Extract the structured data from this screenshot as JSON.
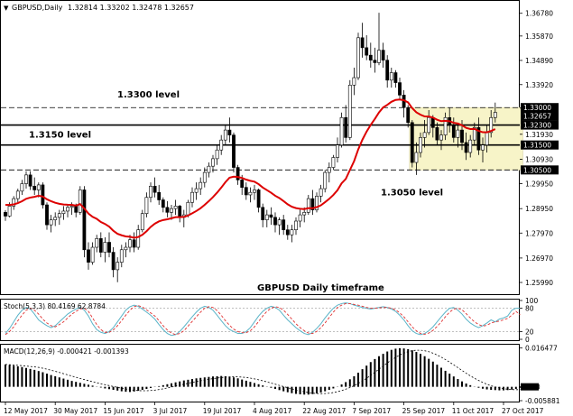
{
  "header": {
    "symbol_label": "GBPUSD,Daily",
    "ohlc_label": "1.32814 1.33202 1.32478 1.32657"
  },
  "chart_data": [
    {
      "type": "candlestick",
      "title": "GBPUSD Daily timeframe",
      "ylim": [
        1.2552,
        1.3724
      ],
      "price_ticks": [
        "1.36780",
        "1.35870",
        "1.34890",
        "1.33920",
        "1.32980",
        "1.31930",
        "1.30930",
        "1.29950",
        "1.28950",
        "1.27970",
        "1.26970",
        "1.25990"
      ],
      "date_ticks": [
        "12 May 2017",
        "30 May 2017",
        "15 Jun 2017",
        "3 Jul 2017",
        "19 Jul 2017",
        "4 Aug 2017",
        "22 Aug 2017",
        "7 Sep 2017",
        "25 Sep 2017",
        "11 Oct 2017",
        "27 Oct 2017"
      ],
      "levels": [
        {
          "id": "lvl-13300",
          "value": 1.33,
          "style": "dashed",
          "label": "1.3300 level",
          "price_label": "1.33000"
        },
        {
          "id": "lvl-13230",
          "value": 1.323,
          "style": "solid",
          "label": "",
          "price_label": "1.32300"
        },
        {
          "id": "lvl-13150",
          "value": 1.315,
          "style": "solid",
          "label": "1.3150 level",
          "price_label": "1.31500"
        },
        {
          "id": "lvl-13050",
          "value": 1.305,
          "style": "dashed",
          "label": "1.3050 level",
          "price_label": "1.30500"
        }
      ],
      "current_price": {
        "value": 1.32657,
        "label": "1.32657"
      },
      "range_box": {
        "start_index": 98,
        "end_index": 124,
        "low": 1.305,
        "high": 1.33
      },
      "moving_average": {
        "color": "#dd0000"
      },
      "candles": [
        [
          1.288,
          1.2889,
          1.2846,
          1.2865
        ],
        [
          1.2865,
          1.292,
          1.286,
          1.2905
        ],
        [
          1.2905,
          1.2945,
          1.289,
          1.2935
        ],
        [
          1.2935,
          1.2975,
          1.292,
          1.2965
        ],
        [
          1.2965,
          1.301,
          1.295,
          1.2995
        ],
        [
          1.2995,
          1.3045,
          1.2975,
          1.303
        ],
        [
          1.303,
          1.3045,
          1.297,
          1.2985
        ],
        [
          1.2985,
          1.302,
          1.295,
          1.297
        ],
        [
          1.297,
          1.3,
          1.294,
          1.299
        ],
        [
          1.299,
          1.3,
          1.2895,
          1.291
        ],
        [
          1.291,
          1.292,
          1.281,
          1.283
        ],
        [
          1.283,
          1.287,
          1.28,
          1.285
        ],
        [
          1.285,
          1.288,
          1.2825,
          1.286
        ],
        [
          1.286,
          1.289,
          1.283,
          1.2875
        ],
        [
          1.2875,
          1.2905,
          1.285,
          1.2885
        ],
        [
          1.2885,
          1.291,
          1.286,
          1.29
        ],
        [
          1.29,
          1.292,
          1.287,
          1.2905
        ],
        [
          1.2905,
          1.2915,
          1.286,
          1.288
        ],
        [
          1.288,
          1.2985,
          1.287,
          1.297
        ],
        [
          1.297,
          1.2985,
          1.27,
          1.273
        ],
        [
          1.273,
          1.276,
          1.265,
          1.268
        ],
        [
          1.268,
          1.276,
          1.267,
          1.274
        ],
        [
          1.274,
          1.279,
          1.272,
          1.2775
        ],
        [
          1.2775,
          1.28,
          1.27,
          1.272
        ],
        [
          1.272,
          1.278,
          1.268,
          1.276
        ],
        [
          1.276,
          1.28,
          1.27,
          1.272
        ],
        [
          1.272,
          1.274,
          1.262,
          1.265
        ],
        [
          1.265,
          1.27,
          1.26,
          1.268
        ],
        [
          1.268,
          1.275,
          1.266,
          1.273
        ],
        [
          1.273,
          1.276,
          1.27,
          1.274
        ],
        [
          1.274,
          1.279,
          1.272,
          1.277
        ],
        [
          1.277,
          1.28,
          1.272,
          1.274
        ],
        [
          1.274,
          1.283,
          1.273,
          1.281
        ],
        [
          1.281,
          1.289,
          1.28,
          1.2875
        ],
        [
          1.2875,
          1.296,
          1.286,
          1.294
        ],
        [
          1.294,
          1.3,
          1.292,
          1.2985
        ],
        [
          1.2985,
          1.302,
          1.294,
          1.296
        ],
        [
          1.296,
          1.299,
          1.291,
          1.293
        ],
        [
          1.293,
          1.294,
          1.288,
          1.29
        ],
        [
          1.29,
          1.2925,
          1.286,
          1.288
        ],
        [
          1.288,
          1.291,
          1.285,
          1.2895
        ],
        [
          1.2895,
          1.293,
          1.287,
          1.2905
        ],
        [
          1.2905,
          1.291,
          1.284,
          1.286
        ],
        [
          1.286,
          1.289,
          1.282,
          1.287
        ],
        [
          1.287,
          1.293,
          1.286,
          1.292
        ],
        [
          1.292,
          1.298,
          1.29,
          1.296
        ],
        [
          1.296,
          1.3,
          1.293,
          1.2975
        ],
        [
          1.2975,
          1.302,
          1.295,
          1.3
        ],
        [
          1.3,
          1.306,
          1.298,
          1.304
        ],
        [
          1.304,
          1.308,
          1.302,
          1.3065
        ],
        [
          1.3065,
          1.311,
          1.304,
          1.3095
        ],
        [
          1.3095,
          1.315,
          1.307,
          1.313
        ],
        [
          1.313,
          1.319,
          1.311,
          1.317
        ],
        [
          1.317,
          1.323,
          1.315,
          1.321
        ],
        [
          1.321,
          1.326,
          1.316,
          1.319
        ],
        [
          1.319,
          1.32,
          1.304,
          1.306
        ],
        [
          1.306,
          1.307,
          1.299,
          1.301
        ],
        [
          1.301,
          1.303,
          1.295,
          1.298
        ],
        [
          1.298,
          1.3,
          1.293,
          1.295
        ],
        [
          1.295,
          1.298,
          1.292,
          1.296
        ],
        [
          1.296,
          1.299,
          1.293,
          1.297
        ],
        [
          1.297,
          1.2975,
          1.288,
          1.29
        ],
        [
          1.29,
          1.2915,
          1.282,
          1.285
        ],
        [
          1.285,
          1.289,
          1.282,
          1.287
        ],
        [
          1.287,
          1.29,
          1.283,
          1.286
        ],
        [
          1.286,
          1.288,
          1.28,
          1.283
        ],
        [
          1.283,
          1.286,
          1.279,
          1.285
        ],
        [
          1.285,
          1.287,
          1.279,
          1.281
        ],
        [
          1.281,
          1.283,
          1.277,
          1.279
        ],
        [
          1.279,
          1.283,
          1.276,
          1.281
        ],
        [
          1.281,
          1.286,
          1.279,
          1.2845
        ],
        [
          1.2845,
          1.289,
          1.282,
          1.287
        ],
        [
          1.287,
          1.29,
          1.284,
          1.288
        ],
        [
          1.288,
          1.295,
          1.287,
          1.2935
        ],
        [
          1.2935,
          1.297,
          1.287,
          1.289
        ],
        [
          1.289,
          1.296,
          1.288,
          1.2945
        ],
        [
          1.2945,
          1.299,
          1.292,
          1.2975
        ],
        [
          1.2975,
          1.305,
          1.296,
          1.304
        ],
        [
          1.304,
          1.308,
          1.3,
          1.306
        ],
        [
          1.306,
          1.311,
          1.305,
          1.31
        ],
        [
          1.31,
          1.318,
          1.308,
          1.315
        ],
        [
          1.315,
          1.328,
          1.314,
          1.326
        ],
        [
          1.326,
          1.331,
          1.316,
          1.318
        ],
        [
          1.318,
          1.341,
          1.317,
          1.339
        ],
        [
          1.339,
          1.346,
          1.335,
          1.342
        ],
        [
          1.342,
          1.36,
          1.341,
          1.358
        ],
        [
          1.358,
          1.364,
          1.35,
          1.354
        ],
        [
          1.354,
          1.359,
          1.349,
          1.351
        ],
        [
          1.351,
          1.356,
          1.346,
          1.349
        ],
        [
          1.349,
          1.354,
          1.344,
          1.348
        ],
        [
          1.348,
          1.368,
          1.347,
          1.353
        ],
        [
          1.353,
          1.356,
          1.346,
          1.349
        ],
        [
          1.349,
          1.351,
          1.338,
          1.341
        ],
        [
          1.341,
          1.346,
          1.338,
          1.344
        ],
        [
          1.344,
          1.345,
          1.338,
          1.34
        ],
        [
          1.34,
          1.342,
          1.333,
          1.335
        ],
        [
          1.335,
          1.337,
          1.326,
          1.33
        ],
        [
          1.33,
          1.331,
          1.322,
          1.324
        ],
        [
          1.324,
          1.325,
          1.306,
          1.308
        ],
        [
          1.308,
          1.316,
          1.303,
          1.312
        ],
        [
          1.312,
          1.32,
          1.31,
          1.318
        ],
        [
          1.318,
          1.325,
          1.314,
          1.32
        ],
        [
          1.32,
          1.329,
          1.319,
          1.326
        ],
        [
          1.326,
          1.327,
          1.318,
          1.322
        ],
        [
          1.322,
          1.324,
          1.315,
          1.317
        ],
        [
          1.317,
          1.321,
          1.313,
          1.319
        ],
        [
          1.319,
          1.328,
          1.317,
          1.326
        ],
        [
          1.326,
          1.33,
          1.32,
          1.323
        ],
        [
          1.323,
          1.326,
          1.316,
          1.318
        ],
        [
          1.318,
          1.323,
          1.314,
          1.321
        ],
        [
          1.321,
          1.325,
          1.313,
          1.316
        ],
        [
          1.316,
          1.32,
          1.309,
          1.312
        ],
        [
          1.312,
          1.319,
          1.31,
          1.317
        ],
        [
          1.317,
          1.324,
          1.315,
          1.322
        ],
        [
          1.322,
          1.326,
          1.311,
          1.313
        ],
        [
          1.313,
          1.318,
          1.308,
          1.315
        ],
        [
          1.315,
          1.323,
          1.312,
          1.32
        ],
        [
          1.32,
          1.329,
          1.318,
          1.326
        ],
        [
          1.326,
          1.332,
          1.324,
          1.3281
        ]
      ]
    },
    {
      "type": "line",
      "title": "Stoch(5,3,3) 80.4169 62.8784",
      "ylim": [
        0,
        100
      ],
      "y_ticks": [
        "100",
        "80",
        "20",
        "0"
      ],
      "series": [
        {
          "color": "#5ab4c8",
          "values": [
            15,
            28,
            45,
            62,
            75,
            82,
            78,
            65,
            50,
            42,
            35,
            30,
            35,
            45,
            55,
            65,
            72,
            78,
            82,
            75,
            60,
            40,
            25,
            18,
            15,
            20,
            30,
            45,
            60,
            75,
            84,
            88,
            85,
            78,
            70,
            62,
            52,
            38,
            25,
            15,
            10,
            12,
            20,
            32,
            45,
            58,
            70,
            80,
            85,
            82,
            75,
            62,
            48,
            35,
            25,
            20,
            15,
            15,
            20,
            30,
            45,
            60,
            72,
            80,
            85,
            82,
            75,
            62,
            50,
            40,
            30,
            22,
            15,
            12,
            18,
            28,
            40,
            55,
            68,
            80,
            88,
            92,
            94,
            92,
            88,
            85,
            82,
            80,
            78,
            80,
            82,
            84,
            82,
            78,
            72,
            62,
            50,
            35,
            22,
            15,
            12,
            15,
            22,
            32,
            45,
            58,
            70,
            80,
            82,
            75,
            65,
            52,
            42,
            35,
            30,
            35,
            42,
            50,
            45,
            52,
            55,
            60,
            75,
            80,
            80
          ]
        },
        {
          "color": "#e03030",
          "values": [
            12,
            20,
            32,
            48,
            62,
            75,
            80,
            75,
            65,
            52,
            42,
            35,
            32,
            38,
            45,
            55,
            65,
            72,
            78,
            80,
            72,
            55,
            38,
            25,
            18,
            18,
            24,
            35,
            48,
            62,
            75,
            84,
            87,
            83,
            76,
            68,
            60,
            48,
            35,
            24,
            16,
            12,
            15,
            22,
            34,
            46,
            58,
            70,
            80,
            84,
            82,
            74,
            62,
            48,
            36,
            26,
            20,
            17,
            17,
            22,
            32,
            46,
            60,
            72,
            80,
            84,
            82,
            75,
            64,
            52,
            40,
            30,
            22,
            16,
            15,
            20,
            30,
            42,
            56,
            70,
            82,
            88,
            92,
            92,
            90,
            88,
            85,
            82,
            80,
            80,
            81,
            82,
            82,
            80,
            76,
            68,
            58,
            45,
            32,
            22,
            15,
            13,
            16,
            23,
            33,
            45,
            58,
            70,
            78,
            80,
            76,
            66,
            55,
            45,
            38,
            34,
            36,
            42,
            45,
            47,
            50,
            54,
            62,
            72,
            63
          ]
        }
      ]
    },
    {
      "type": "bar",
      "title": "MACD(12,26,9) -0.000421 -0.001393",
      "ylim": [
        -0.00588,
        0.0175
      ],
      "y_ticks": [
        "0.016477",
        "0.00",
        "-0.005881"
      ],
      "histogram": [
        0.0095,
        0.0093,
        0.009,
        0.0087,
        0.0084,
        0.008,
        0.0076,
        0.0072,
        0.0067,
        0.0062,
        0.0056,
        0.005,
        0.0045,
        0.004,
        0.0035,
        0.003,
        0.0025,
        0.0021,
        0.0017,
        0.0013,
        0.0009,
        0.0005,
        0.0001,
        -0.0003,
        -0.0007,
        -0.001,
        -0.0013,
        -0.0016,
        -0.0019,
        -0.0021,
        -0.0022,
        -0.002,
        -0.0017,
        -0.0013,
        -0.0009,
        -0.0005,
        -0.0001,
        0.0003,
        0.0007,
        0.0011,
        0.0015,
        0.0019,
        0.0023,
        0.0027,
        0.003,
        0.0033,
        0.0036,
        0.0038,
        0.004,
        0.0042,
        0.0044,
        0.0045,
        0.0046,
        0.0045,
        0.0043,
        0.004,
        0.0036,
        0.0031,
        0.0026,
        0.0021,
        0.0016,
        0.0011,
        0.0006,
        0.0001,
        -0.0004,
        -0.0009,
        -0.0014,
        -0.0019,
        -0.0023,
        -0.0027,
        -0.003,
        -0.0032,
        -0.0033,
        -0.0033,
        -0.0031,
        -0.0028,
        -0.0024,
        -0.0019,
        -0.0013,
        -0.0007,
        0.0001,
        0.001,
        0.002,
        0.0032,
        0.0045,
        0.006,
        0.0075,
        0.009,
        0.0105,
        0.0118,
        0.013,
        0.014,
        0.015,
        0.0157,
        0.0162,
        0.0164,
        0.0163,
        0.016,
        0.0155,
        0.0148,
        0.014,
        0.013,
        0.0119,
        0.0107,
        0.0094,
        0.0081,
        0.0068,
        0.0056,
        0.0044,
        0.0033,
        0.0023,
        0.0014,
        0.0007,
        0.0001,
        -0.0004,
        -0.0008,
        -0.0011,
        -0.0013,
        -0.0014,
        -0.0015,
        -0.0015,
        -0.0014,
        -0.0012,
        -0.0009,
        -0.0004
      ],
      "signal_color": "#000000"
    }
  ]
}
